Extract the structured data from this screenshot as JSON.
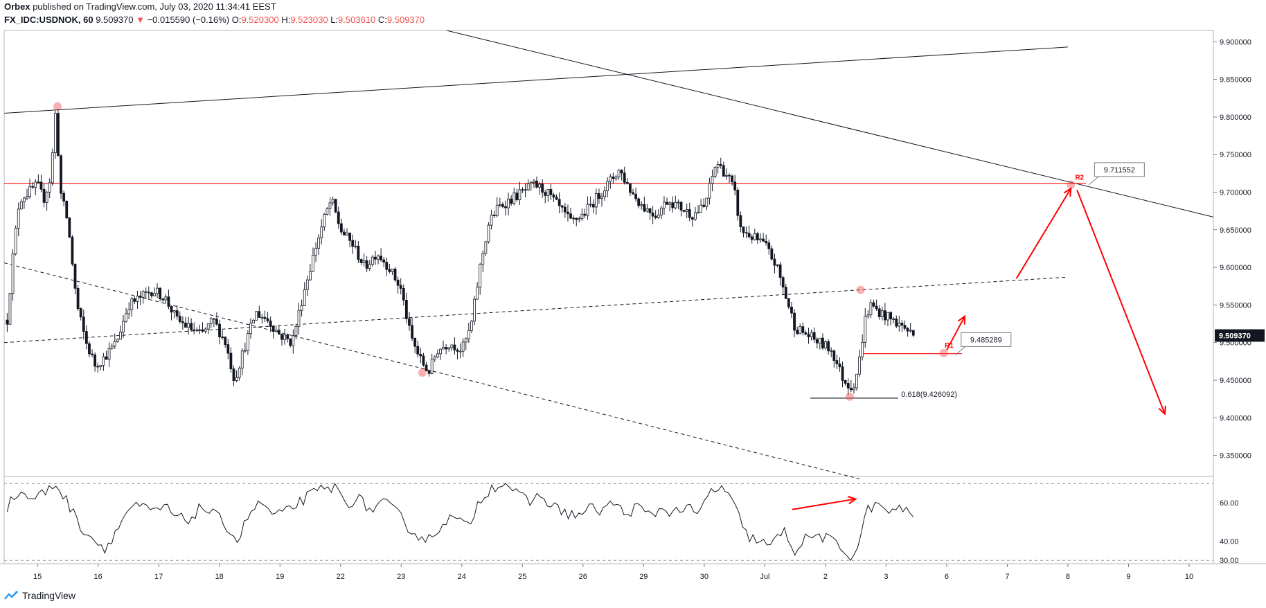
{
  "header": {
    "publisher": "Orbex",
    "published_text": "published on TradingView.com, July 03, 2020 11:34:41 EEST",
    "symbol": "FX_IDC:USDNOK, 60",
    "last": "9.509370",
    "change_arrow": "▼",
    "change": "−0.015590 (−0.16%)",
    "o_label": "O:",
    "o_value": "9.520300",
    "h_label": "H:",
    "h_value": "9.523030",
    "l_label": "L:",
    "l_value": "9.503610",
    "c_label": "C:",
    "c_value": "9.509370"
  },
  "footer": {
    "brand": "TradingView",
    "logo_icon": "tradingview-logo-icon"
  },
  "colors": {
    "down": "#ef5350",
    "annotation": "#ff0000",
    "candle": "#131722",
    "grid": "#e0e3eb"
  },
  "chart_data": {
    "type": "candlestick",
    "x_ticks": [
      {
        "i": 0,
        "label": "15"
      },
      {
        "i": 1,
        "label": "16"
      },
      {
        "i": 2,
        "label": "17"
      },
      {
        "i": 3,
        "label": "18"
      },
      {
        "i": 4,
        "label": "19"
      },
      {
        "i": 5,
        "label": "22"
      },
      {
        "i": 6,
        "label": "23"
      },
      {
        "i": 7,
        "label": "24"
      },
      {
        "i": 8,
        "label": "25"
      },
      {
        "i": 9,
        "label": "26"
      },
      {
        "i": 10,
        "label": "29"
      },
      {
        "i": 11,
        "label": "30"
      },
      {
        "i": 12,
        "label": "Jul"
      },
      {
        "i": 13,
        "label": "2"
      },
      {
        "i": 14,
        "label": "3"
      },
      {
        "i": 15,
        "label": "6"
      },
      {
        "i": 16,
        "label": "7"
      },
      {
        "i": 17,
        "label": "8"
      },
      {
        "i": 18,
        "label": "9"
      },
      {
        "i": 19,
        "label": "10"
      }
    ],
    "x_range": [
      -0.55,
      19.4
    ],
    "price_axis": {
      "ticks": [
        "9.350000",
        "9.400000",
        "9.450000",
        "9.500000",
        "9.550000",
        "9.600000",
        "9.650000",
        "9.700000",
        "9.750000",
        "9.800000",
        "9.850000",
        "9.900000"
      ],
      "range": [
        9.322,
        9.915
      ],
      "last_price_label": "9.509370",
      "last_price": 9.50937
    },
    "price_path": [
      [
        -0.5,
        9.53
      ],
      [
        -0.4,
        9.62
      ],
      [
        -0.3,
        9.69
      ],
      [
        -0.15,
        9.7
      ],
      [
        0.0,
        9.71
      ],
      [
        0.1,
        9.69
      ],
      [
        0.22,
        9.72
      ],
      [
        0.3,
        9.81
      ],
      [
        0.38,
        9.7
      ],
      [
        0.5,
        9.66
      ],
      [
        0.65,
        9.55
      ],
      [
        0.8,
        9.5
      ],
      [
        0.95,
        9.47
      ],
      [
        1.1,
        9.48
      ],
      [
        1.3,
        9.5
      ],
      [
        1.5,
        9.55
      ],
      [
        1.7,
        9.56
      ],
      [
        1.9,
        9.57
      ],
      [
        2.1,
        9.56
      ],
      [
        2.3,
        9.53
      ],
      [
        2.5,
        9.52
      ],
      [
        2.7,
        9.51
      ],
      [
        2.9,
        9.53
      ],
      [
        3.1,
        9.5
      ],
      [
        3.25,
        9.45
      ],
      [
        3.4,
        9.49
      ],
      [
        3.6,
        9.54
      ],
      [
        3.8,
        9.53
      ],
      [
        4.0,
        9.51
      ],
      [
        4.2,
        9.5
      ],
      [
        4.4,
        9.57
      ],
      [
        4.6,
        9.63
      ],
      [
        4.75,
        9.67
      ],
      [
        4.85,
        9.69
      ],
      [
        5.0,
        9.65
      ],
      [
        5.2,
        9.63
      ],
      [
        5.4,
        9.6
      ],
      [
        5.6,
        9.62
      ],
      [
        5.8,
        9.6
      ],
      [
        6.0,
        9.57
      ],
      [
        6.15,
        9.51
      ],
      [
        6.3,
        9.48
      ],
      [
        6.45,
        9.46
      ],
      [
        6.6,
        9.49
      ],
      [
        6.8,
        9.5
      ],
      [
        7.0,
        9.49
      ],
      [
        7.15,
        9.52
      ],
      [
        7.3,
        9.6
      ],
      [
        7.45,
        9.66
      ],
      [
        7.6,
        9.68
      ],
      [
        7.8,
        9.69
      ],
      [
        8.0,
        9.7
      ],
      [
        8.2,
        9.71
      ],
      [
        8.4,
        9.7
      ],
      [
        8.6,
        9.68
      ],
      [
        8.8,
        9.66
      ],
      [
        9.0,
        9.67
      ],
      [
        9.2,
        9.69
      ],
      [
        9.4,
        9.71
      ],
      [
        9.6,
        9.73
      ],
      [
        9.8,
        9.7
      ],
      [
        10.0,
        9.68
      ],
      [
        10.2,
        9.67
      ],
      [
        10.4,
        9.69
      ],
      [
        10.6,
        9.68
      ],
      [
        10.8,
        9.67
      ],
      [
        11.0,
        9.68
      ],
      [
        11.2,
        9.74
      ],
      [
        11.4,
        9.72
      ],
      [
        11.5,
        9.7
      ],
      [
        11.6,
        9.65
      ],
      [
        11.8,
        9.64
      ],
      [
        12.0,
        9.63
      ],
      [
        12.2,
        9.6
      ],
      [
        12.35,
        9.56
      ],
      [
        12.5,
        9.52
      ],
      [
        12.7,
        9.51
      ],
      [
        12.9,
        9.5
      ],
      [
        13.1,
        9.49
      ],
      [
        13.3,
        9.45
      ],
      [
        13.45,
        9.44
      ],
      [
        13.55,
        9.47
      ],
      [
        13.65,
        9.53
      ],
      [
        13.75,
        9.55
      ],
      [
        13.9,
        9.54
      ],
      [
        14.1,
        9.53
      ],
      [
        14.3,
        9.52
      ],
      [
        14.45,
        9.51
      ]
    ],
    "trendlines": [
      {
        "name": "upper-channel",
        "style": "solid",
        "p1": [
          -0.55,
          9.805
        ],
        "p2": [
          17.0,
          9.893
        ]
      },
      {
        "name": "descending-resistance",
        "style": "solid",
        "p1": [
          6.75,
          9.915
        ],
        "p2": [
          19.4,
          9.667
        ]
      },
      {
        "name": "rising-dashed",
        "style": "dashed",
        "p1": [
          -0.55,
          9.5
        ],
        "p2": [
          17.0,
          9.587
        ]
      },
      {
        "name": "falling-dashed",
        "style": "dashed",
        "p1": [
          -0.55,
          9.606
        ],
        "p2": [
          13.6,
          9.318
        ]
      }
    ],
    "horizontal_levels": [
      {
        "name": "R2-line",
        "value": 9.711552,
        "from": -0.55,
        "to": 17.3,
        "color": "#ff0000"
      },
      {
        "name": "R1-line",
        "value": 9.485289,
        "from": 13.62,
        "to": 15.25,
        "color": "#ff0000"
      },
      {
        "name": "fib-line",
        "value": 9.426092,
        "from": 12.75,
        "to": 14.2,
        "color": "#131722"
      }
    ],
    "labels": [
      {
        "name": "R2-price-label",
        "text": "9.711552",
        "x": 17.85,
        "y": 9.73
      },
      {
        "name": "R1-price-label",
        "text": "9.485289",
        "x": 15.65,
        "y": 9.504
      },
      {
        "name": "fib-label",
        "text": "0.618(9.426092)",
        "x": 14.25,
        "y": 9.428
      }
    ],
    "markers": [
      {
        "name": "R2-marker",
        "text": "R2",
        "x": 17.05,
        "y": 9.709
      },
      {
        "name": "R1-marker",
        "text": "R1",
        "x": 14.9,
        "y": 9.486
      }
    ],
    "highlight_points": [
      [
        0.33,
        9.814
      ],
      [
        6.35,
        9.46
      ],
      [
        13.58,
        9.57
      ],
      [
        13.4,
        9.428
      ],
      [
        14.95,
        9.486
      ],
      [
        17.05,
        9.71
      ]
    ],
    "forecast_arrows": [
      {
        "name": "arrow-up-to-ladder",
        "from": [
          15.0,
          9.49
        ],
        "to": [
          15.3,
          9.535
        ]
      },
      {
        "name": "arrow-up-to-r2",
        "from": [
          16.15,
          9.585
        ],
        "to": [
          17.05,
          9.705
        ]
      },
      {
        "name": "arrow-down-from-r2",
        "from": [
          17.15,
          9.703
        ],
        "to": [
          18.6,
          9.405
        ]
      }
    ],
    "rsi": {
      "ticks": [
        "30.00",
        "40.00",
        "60.00"
      ],
      "tick_values": [
        30,
        40,
        60
      ],
      "bands": [
        70,
        30
      ],
      "range": [
        29,
        73
      ],
      "path": [
        [
          -0.5,
          58
        ],
        [
          -0.3,
          66
        ],
        [
          -0.1,
          62
        ],
        [
          0.1,
          65
        ],
        [
          0.3,
          70
        ],
        [
          0.5,
          60
        ],
        [
          0.7,
          48
        ],
        [
          0.9,
          42
        ],
        [
          1.1,
          36
        ],
        [
          1.3,
          45
        ],
        [
          1.5,
          57
        ],
        [
          1.7,
          58
        ],
        [
          1.9,
          55
        ],
        [
          2.1,
          58
        ],
        [
          2.3,
          52
        ],
        [
          2.5,
          51
        ],
        [
          2.7,
          58
        ],
        [
          2.9,
          54
        ],
        [
          3.1,
          49
        ],
        [
          3.3,
          40
        ],
        [
          3.5,
          55
        ],
        [
          3.7,
          60
        ],
        [
          3.9,
          53
        ],
        [
          4.1,
          55
        ],
        [
          4.3,
          60
        ],
        [
          4.5,
          64
        ],
        [
          4.7,
          67
        ],
        [
          4.9,
          68
        ],
        [
          5.1,
          60
        ],
        [
          5.3,
          62
        ],
        [
          5.5,
          56
        ],
        [
          5.7,
          60
        ],
        [
          5.9,
          56
        ],
        [
          6.1,
          48
        ],
        [
          6.3,
          42
        ],
        [
          6.5,
          41
        ],
        [
          6.7,
          51
        ],
        [
          6.9,
          52
        ],
        [
          7.1,
          47
        ],
        [
          7.3,
          62
        ],
        [
          7.5,
          68
        ],
        [
          7.7,
          71
        ],
        [
          7.9,
          65
        ],
        [
          8.1,
          60
        ],
        [
          8.3,
          64
        ],
        [
          8.5,
          58
        ],
        [
          8.7,
          55
        ],
        [
          8.9,
          53
        ],
        [
          9.1,
          57
        ],
        [
          9.3,
          56
        ],
        [
          9.5,
          60
        ],
        [
          9.7,
          54
        ],
        [
          9.9,
          58
        ],
        [
          10.1,
          53
        ],
        [
          10.3,
          57
        ],
        [
          10.5,
          55
        ],
        [
          10.7,
          58
        ],
        [
          10.9,
          53
        ],
        [
          11.1,
          66
        ],
        [
          11.3,
          68
        ],
        [
          11.5,
          58
        ],
        [
          11.7,
          43
        ],
        [
          11.9,
          40
        ],
        [
          12.1,
          37
        ],
        [
          12.3,
          46
        ],
        [
          12.5,
          35
        ],
        [
          12.7,
          42
        ],
        [
          12.9,
          43
        ],
        [
          13.1,
          40
        ],
        [
          13.3,
          35
        ],
        [
          13.45,
          31
        ],
        [
          13.6,
          44
        ],
        [
          13.7,
          58
        ],
        [
          13.9,
          58
        ],
        [
          14.1,
          55
        ],
        [
          14.3,
          57
        ],
        [
          14.45,
          54
        ]
      ],
      "arrow": {
        "from": [
          12.45,
          56.5
        ],
        "to": [
          13.5,
          62
        ]
      }
    }
  }
}
